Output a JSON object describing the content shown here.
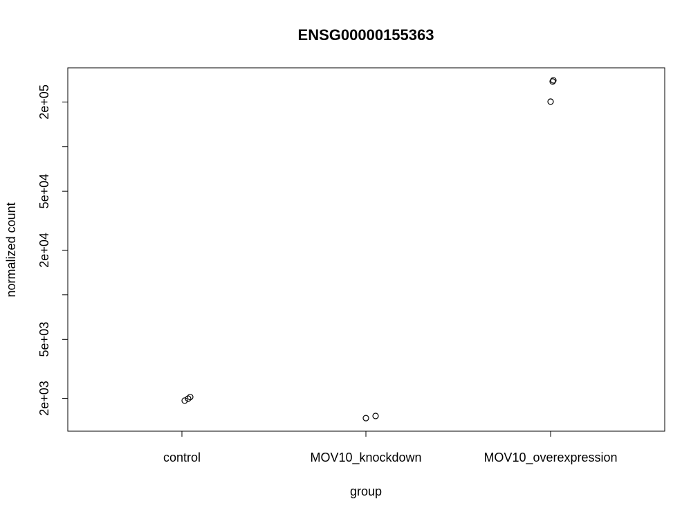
{
  "chart_data": {
    "type": "scatter",
    "title": "ENSG00000155363",
    "xlabel": "group",
    "ylabel": "normalized count",
    "categories": [
      "control",
      "MOV10_knockdown",
      "MOV10_overexpression"
    ],
    "y_scale": "log",
    "ylim": [
      1200,
      340000
    ],
    "y_ticks": [
      {
        "value": 2000,
        "label": "2e+03"
      },
      {
        "value": 5000,
        "label": "5e+03"
      },
      {
        "value": 10000,
        "label": ""
      },
      {
        "value": 20000,
        "label": "2e+04"
      },
      {
        "value": 50000,
        "label": "5e+04"
      },
      {
        "value": 100000,
        "label": ""
      },
      {
        "value": 200000,
        "label": "2e+05"
      }
    ],
    "series": [
      {
        "points": [
          {
            "category": "control",
            "y": 1930
          },
          {
            "category": "control",
            "y": 1990
          },
          {
            "category": "control",
            "y": 2040
          },
          {
            "category": "MOV10_knockdown",
            "y": 1470
          },
          {
            "category": "MOV10_knockdown",
            "y": 1520
          },
          {
            "category": "MOV10_overexpression",
            "y": 201000
          },
          {
            "category": "MOV10_overexpression",
            "y": 275000
          },
          {
            "category": "MOV10_overexpression",
            "y": 280000
          }
        ]
      }
    ],
    "grid": false,
    "legend": "none"
  }
}
